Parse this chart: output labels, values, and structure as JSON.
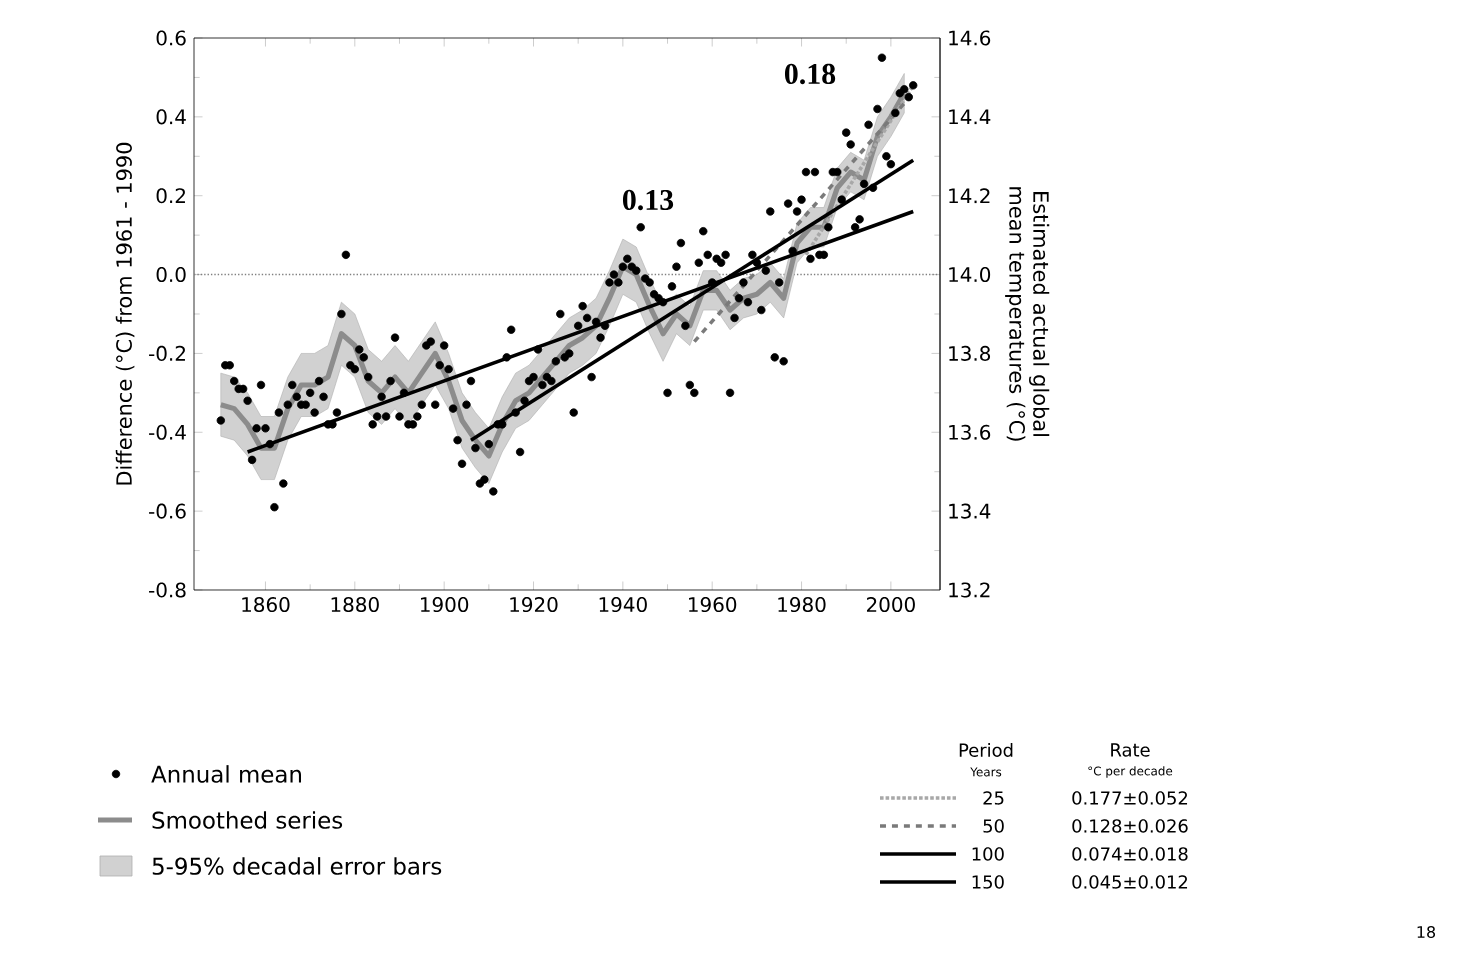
{
  "chart_data": {
    "type": "line",
    "ylabel": "Difference (°C) from 1961 - 1990",
    "y2label": "Estimated actual global mean temperatures (°C)",
    "xlim": [
      1844,
      2011
    ],
    "xticks": [
      1860,
      1880,
      1900,
      1920,
      1940,
      1960,
      1980,
      2000
    ],
    "ylim": [
      -0.8,
      0.6
    ],
    "yticks": [
      -0.8,
      -0.6,
      -0.4,
      -0.2,
      {
        "value": 0,
        "label": "0.0"
      },
      0.2,
      0.4,
      0.6
    ],
    "y2lim": [
      13.2,
      14.6
    ],
    "y2ticks": [
      13.2,
      13.4,
      13.6,
      13.8,
      {
        "value": 14,
        "label": "14.0"
      },
      14.2,
      14.4,
      14.6
    ],
    "legend": "bottom",
    "ref_lines": [
      {
        "axis": "y",
        "value": 0,
        "color": "#808080",
        "line_style": "dotted"
      }
    ],
    "series": [
      {
        "name": "Annual mean",
        "type": "scatter",
        "marker": "circle",
        "color": "#000000",
        "x": [
          1850,
          1851,
          1852,
          1853,
          1854,
          1855,
          1856,
          1857,
          1858,
          1859,
          1860,
          1861,
          1862,
          1863,
          1864,
          1865,
          1866,
          1867,
          1868,
          1869,
          1870,
          1871,
          1872,
          1873,
          1874,
          1875,
          1876,
          1877,
          1878,
          1879,
          1880,
          1881,
          1882,
          1883,
          1884,
          1885,
          1886,
          1887,
          1888,
          1889,
          1890,
          1891,
          1892,
          1893,
          1894,
          1895,
          1896,
          1897,
          1898,
          1899,
          1900,
          1901,
          1902,
          1903,
          1904,
          1905,
          1906,
          1907,
          1908,
          1909,
          1910,
          1911,
          1912,
          1913,
          1914,
          1915,
          1916,
          1917,
          1918,
          1919,
          1920,
          1921,
          1922,
          1923,
          1924,
          1925,
          1926,
          1927,
          1928,
          1929,
          1930,
          1931,
          1932,
          1933,
          1934,
          1935,
          1936,
          1937,
          1938,
          1939,
          1940,
          1941,
          1942,
          1943,
          1944,
          1945,
          1946,
          1947,
          1948,
          1949,
          1950,
          1951,
          1952,
          1953,
          1954,
          1955,
          1956,
          1957,
          1958,
          1959,
          1960,
          1961,
          1962,
          1963,
          1964,
          1965,
          1966,
          1967,
          1968,
          1969,
          1970,
          1971,
          1972,
          1973,
          1974,
          1975,
          1976,
          1977,
          1978,
          1979,
          1980,
          1981,
          1982,
          1983,
          1984,
          1985,
          1986,
          1987,
          1988,
          1989,
          1990,
          1991,
          1992,
          1993,
          1994,
          1995,
          1996,
          1997,
          1998,
          1999,
          2000,
          2001,
          2002,
          2003,
          2004,
          2005
        ],
        "values": [
          -0.37,
          -0.23,
          -0.23,
          -0.27,
          -0.29,
          -0.29,
          -0.32,
          -0.47,
          -0.39,
          -0.28,
          -0.39,
          -0.43,
          -0.59,
          -0.35,
          -0.53,
          -0.33,
          -0.28,
          -0.31,
          -0.33,
          -0.33,
          -0.3,
          -0.35,
          -0.27,
          -0.31,
          -0.38,
          -0.38,
          -0.35,
          -0.1,
          0.05,
          -0.23,
          -0.24,
          -0.19,
          -0.21,
          -0.26,
          -0.38,
          -0.36,
          -0.31,
          -0.36,
          -0.27,
          -0.16,
          -0.36,
          -0.3,
          -0.38,
          -0.38,
          -0.36,
          -0.33,
          -0.18,
          -0.17,
          -0.33,
          -0.23,
          -0.18,
          -0.24,
          -0.34,
          -0.42,
          -0.48,
          -0.33,
          -0.27,
          -0.44,
          -0.53,
          -0.52,
          -0.43,
          -0.55,
          -0.38,
          -0.38,
          -0.21,
          -0.14,
          -0.35,
          -0.45,
          -0.32,
          -0.27,
          -0.26,
          -0.19,
          -0.28,
          -0.26,
          -0.27,
          -0.22,
          -0.1,
          -0.21,
          -0.2,
          -0.35,
          -0.13,
          -0.08,
          -0.11,
          -0.26,
          -0.12,
          -0.16,
          -0.13,
          -0.02,
          0.0,
          -0.02,
          0.02,
          0.04,
          0.02,
          0.01,
          0.12,
          -0.01,
          -0.02,
          -0.05,
          -0.06,
          -0.07,
          -0.3,
          -0.03,
          0.02,
          0.08,
          -0.13,
          -0.28,
          -0.3,
          0.03,
          0.11,
          0.05,
          -0.02,
          0.04,
          0.03,
          0.05,
          -0.3,
          -0.11,
          -0.06,
          -0.02,
          -0.07,
          0.05,
          0.03,
          -0.09,
          0.01,
          0.16,
          -0.21,
          -0.02,
          -0.22,
          0.18,
          0.06,
          0.16,
          0.19,
          0.26,
          0.04,
          0.26,
          0.05,
          0.05,
          0.12,
          0.26,
          0.26,
          0.19,
          0.36,
          0.33,
          0.12,
          0.14,
          0.23,
          0.38,
          0.22,
          0.42,
          0.55,
          0.3,
          0.28,
          0.41,
          0.46,
          0.47,
          0.45,
          0.48
        ]
      },
      {
        "name": "Smoothed series",
        "color": "#8c8c8c",
        "x": [
          1850,
          1853,
          1856,
          1859,
          1862,
          1865,
          1868,
          1871,
          1874,
          1877,
          1880,
          1883,
          1886,
          1889,
          1892,
          1895,
          1898,
          1901,
          1904,
          1907,
          1910,
          1913,
          1916,
          1919,
          1922,
          1925,
          1928,
          1931,
          1934,
          1937,
          1940,
          1943,
          1946,
          1949,
          1952,
          1955,
          1958,
          1961,
          1964,
          1967,
          1970,
          1973,
          1976,
          1979,
          1982,
          1985,
          1988,
          1991,
          1994,
          1997,
          2000,
          2003
        ],
        "values": [
          -0.33,
          -0.34,
          -0.38,
          -0.44,
          -0.44,
          -0.34,
          -0.28,
          -0.28,
          -0.26,
          -0.15,
          -0.18,
          -0.27,
          -0.3,
          -0.26,
          -0.3,
          -0.25,
          -0.2,
          -0.27,
          -0.37,
          -0.42,
          -0.46,
          -0.38,
          -0.32,
          -0.3,
          -0.26,
          -0.22,
          -0.18,
          -0.16,
          -0.13,
          -0.06,
          0.02,
          0.0,
          -0.08,
          -0.15,
          -0.1,
          -0.13,
          -0.04,
          -0.04,
          -0.09,
          -0.06,
          -0.05,
          -0.02,
          -0.06,
          0.08,
          0.12,
          0.12,
          0.22,
          0.26,
          0.24,
          0.35,
          0.4,
          0.46
        ],
        "lower": [
          -0.41,
          -0.42,
          -0.46,
          -0.52,
          -0.52,
          -0.42,
          -0.36,
          -0.36,
          -0.34,
          -0.23,
          -0.26,
          -0.35,
          -0.38,
          -0.34,
          -0.38,
          -0.33,
          -0.28,
          -0.34,
          -0.44,
          -0.49,
          -0.53,
          -0.45,
          -0.39,
          -0.37,
          -0.33,
          -0.29,
          -0.25,
          -0.23,
          -0.2,
          -0.13,
          -0.05,
          -0.07,
          -0.15,
          -0.22,
          -0.15,
          -0.18,
          -0.09,
          -0.09,
          -0.14,
          -0.11,
          -0.1,
          -0.07,
          -0.11,
          0.03,
          0.07,
          0.07,
          0.17,
          0.21,
          0.19,
          0.3,
          0.35,
          0.41
        ],
        "upper": [
          -0.25,
          -0.26,
          -0.3,
          -0.36,
          -0.36,
          -0.26,
          -0.2,
          -0.2,
          -0.18,
          -0.07,
          -0.1,
          -0.19,
          -0.22,
          -0.18,
          -0.22,
          -0.17,
          -0.12,
          -0.2,
          -0.3,
          -0.35,
          -0.39,
          -0.31,
          -0.25,
          -0.23,
          -0.19,
          -0.15,
          -0.11,
          -0.09,
          -0.06,
          0.01,
          0.09,
          0.07,
          -0.01,
          -0.08,
          -0.05,
          -0.08,
          0.01,
          0.01,
          -0.04,
          -0.01,
          0.0,
          0.03,
          -0.01,
          0.13,
          0.17,
          0.17,
          0.27,
          0.31,
          0.29,
          0.4,
          0.45,
          0.51
        ]
      },
      {
        "name": "25",
        "color": "#a8a8a8",
        "line_style": "dotted",
        "x": [
          1981,
          2005
        ],
        "values": [
          0.05,
          0.48
        ]
      },
      {
        "name": "50",
        "color": "#7a7a7a",
        "line_style": "dashed",
        "x": [
          1956,
          2005
        ],
        "values": [
          -0.17,
          0.46
        ]
      },
      {
        "name": "100",
        "color": "#000000",
        "line_style": "solid",
        "x": [
          1906,
          2005
        ],
        "values": [
          -0.42,
          0.29
        ]
      },
      {
        "name": "150",
        "color": "#000000",
        "line_style": "solid",
        "x": [
          1856,
          2005
        ],
        "values": [
          -0.45,
          0.16
        ]
      }
    ],
    "annotations": [
      "5-95% decadal error bars",
      "Period",
      "Years",
      "Rate",
      "°C per decade",
      "0.177±0.052",
      "0.128±0.026",
      "0.074±0.018",
      "0.045±0.012",
      "0.13",
      "0.18",
      "18"
    ]
  }
}
